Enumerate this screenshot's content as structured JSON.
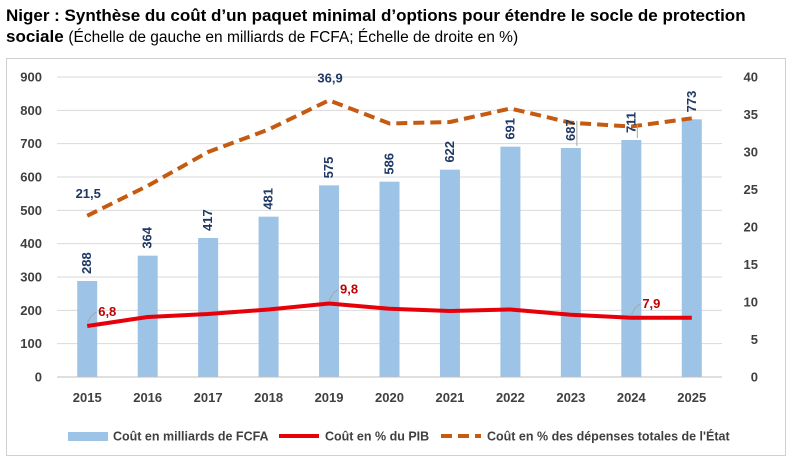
{
  "title": {
    "main": "Niger : Synthèse du coût d’un paquet minimal d’options pour étendre le socle de protection sociale",
    "sub": "(Échelle de gauche en milliards de FCFA; Échelle de droite en %)"
  },
  "colors": {
    "bar": "#9dc3e6",
    "pib": "#e6000a",
    "dep": "#c55a11",
    "grid": "#d9d9d9",
    "connector": "#a6a6a6"
  },
  "chart_data": {
    "type": "bar",
    "title": "Niger : Synthèse du coût d’un paquet minimal d’options pour étendre le socle de protection sociale",
    "subtitle": "(Échelle de gauche en milliards de FCFA; Échelle de droite en %)",
    "categories": [
      "2015",
      "2016",
      "2017",
      "2018",
      "2019",
      "2020",
      "2021",
      "2022",
      "2023",
      "2024",
      "2025"
    ],
    "y_left": {
      "min": 0,
      "max": 900,
      "step": 100,
      "ticks": [
        "0",
        "100",
        "200",
        "300",
        "400",
        "500",
        "600",
        "700",
        "800",
        "900"
      ]
    },
    "y_right": {
      "min": 0,
      "max": 40,
      "step": 5,
      "ticks": [
        "0",
        "5",
        "10",
        "15",
        "20",
        "25",
        "30",
        "35",
        "40"
      ]
    },
    "grid": true,
    "legend_position": "bottom",
    "series": [
      {
        "name": "Coût en milliards de FCFA",
        "kind": "bar",
        "axis": "left",
        "values": [
          288,
          364,
          417,
          481,
          575,
          586,
          622,
          691,
          687,
          711,
          773
        ],
        "labels": [
          "288",
          "364",
          "417",
          "481",
          "575",
          "586",
          "622",
          "691",
          "687",
          "711",
          "773"
        ]
      },
      {
        "name": "Coût en % du PIB",
        "kind": "line",
        "axis": "right",
        "values": [
          6.8,
          8.0,
          8.4,
          9.0,
          9.8,
          9.1,
          8.8,
          9.0,
          8.3,
          7.9,
          7.9
        ],
        "labels": [
          {
            "index": 0,
            "text": "6,8"
          },
          {
            "index": 4,
            "text": "9,8"
          },
          {
            "index": 9,
            "text": "7,9"
          }
        ]
      },
      {
        "name": "Coût en % des dépenses totales de l'État",
        "kind": "dashed-line",
        "axis": "right",
        "values": [
          21.5,
          25.5,
          30.0,
          33.0,
          36.9,
          33.8,
          34.0,
          35.8,
          33.9,
          33.4,
          34.5
        ],
        "labels": [
          {
            "index": 0,
            "text": "21,5"
          },
          {
            "index": 4,
            "text": "36,9"
          }
        ]
      }
    ]
  }
}
